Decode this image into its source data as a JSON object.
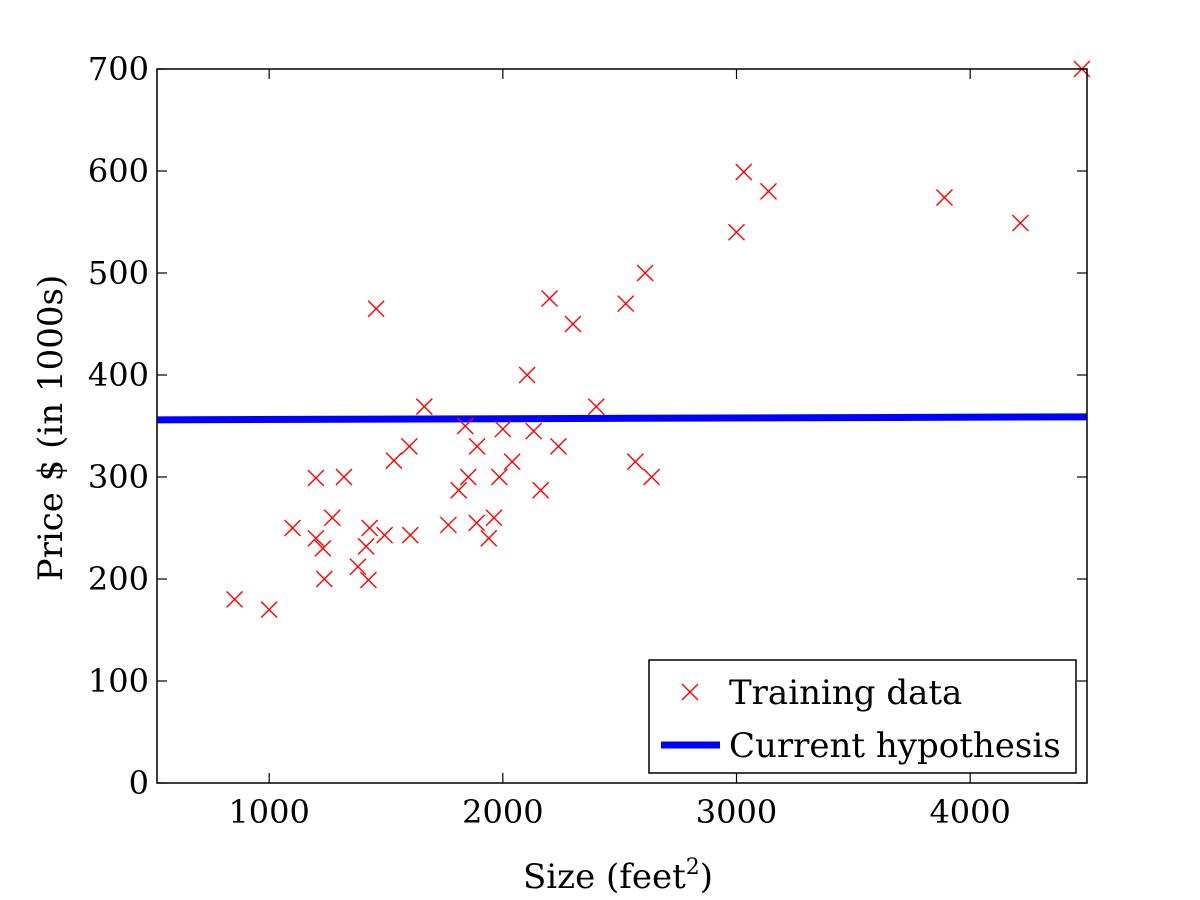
{
  "chart_data": {
    "type": "scatter",
    "title": "",
    "xlabel": "Size (feet",
    "xlabel_sup": "2",
    "xlabel_close": ")",
    "ylabel": "Price $ (in 1000s)",
    "xlim": [
      520,
      4500
    ],
    "ylim": [
      0,
      700
    ],
    "xticks": [
      1000,
      2000,
      3000,
      4000
    ],
    "yticks": [
      0,
      100,
      200,
      300,
      400,
      500,
      600,
      700
    ],
    "grid": false,
    "legend_position": "bottom-right",
    "series": [
      {
        "name": "Training data",
        "kind": "scatter",
        "marker": "x",
        "color": "#ff0000",
        "points": [
          [
            852,
            180
          ],
          [
            1000,
            170
          ],
          [
            1100,
            250
          ],
          [
            1200,
            299
          ],
          [
            1200,
            240
          ],
          [
            1230,
            230
          ],
          [
            1236,
            200
          ],
          [
            1270,
            260
          ],
          [
            1320,
            300
          ],
          [
            1380,
            212
          ],
          [
            1415,
            232
          ],
          [
            1425,
            199
          ],
          [
            1430,
            250
          ],
          [
            1458,
            465
          ],
          [
            1494,
            243
          ],
          [
            1534,
            316
          ],
          [
            1600,
            330
          ],
          [
            1604,
            243
          ],
          [
            1664,
            369
          ],
          [
            1767,
            253
          ],
          [
            1811,
            287
          ],
          [
            1839,
            350
          ],
          [
            1852,
            300
          ],
          [
            1888,
            255
          ],
          [
            1890,
            330
          ],
          [
            1940,
            240
          ],
          [
            1962,
            260
          ],
          [
            1985,
            300
          ],
          [
            2000,
            347
          ],
          [
            2040,
            315
          ],
          [
            2104,
            400
          ],
          [
            2132,
            345
          ],
          [
            2162,
            287
          ],
          [
            2200,
            475
          ],
          [
            2238,
            330
          ],
          [
            2300,
            450
          ],
          [
            2400,
            369
          ],
          [
            2526,
            470
          ],
          [
            2567,
            315
          ],
          [
            2609,
            500
          ],
          [
            2637,
            300
          ],
          [
            3000,
            540
          ],
          [
            3031,
            599
          ],
          [
            3137,
            580
          ],
          [
            3890,
            574
          ],
          [
            4215,
            549
          ],
          [
            4478,
            700
          ]
        ]
      },
      {
        "name": "Current hypothesis",
        "kind": "line",
        "color": "#0000ff",
        "points": [
          [
            520,
            356
          ],
          [
            4500,
            359
          ]
        ]
      }
    ]
  }
}
